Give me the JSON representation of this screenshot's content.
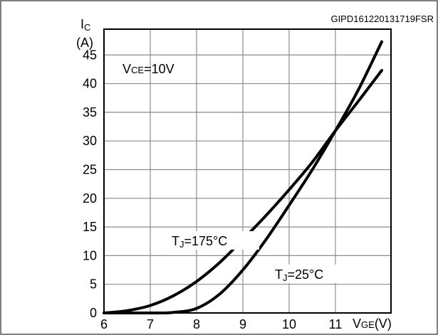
{
  "figure_code": "GIPD161220131719FSR",
  "chart_data": {
    "type": "line",
    "x_unit_label": "(V)",
    "y_label": {
      "main": "I",
      "sub": "C"
    },
    "y_unit_label": "(A)",
    "x_label": {
      "main": "V",
      "sub": "GE"
    },
    "x_ticks": [
      "6",
      "7",
      "8",
      "9",
      "10",
      "11"
    ],
    "y_ticks": [
      "0",
      "5",
      "10",
      "15",
      "20",
      "25",
      "30",
      "35",
      "40",
      "45"
    ],
    "xlim": [
      6,
      12.2
    ],
    "ylim": [
      0,
      49.5
    ],
    "grid": true,
    "annotation": {
      "main": "V",
      "sub": "CE",
      "rest": "=10V"
    },
    "series": [
      {
        "label": {
          "main": "T",
          "sub": "J",
          "rest": "=175°C"
        },
        "points": [
          [
            6.0,
            0.0
          ],
          [
            6.5,
            0.4
          ],
          [
            7.0,
            1.3
          ],
          [
            7.5,
            3.0
          ],
          [
            8.0,
            5.5
          ],
          [
            8.5,
            8.8
          ],
          [
            9.0,
            12.8
          ],
          [
            9.5,
            17.0
          ],
          [
            10.0,
            21.5
          ],
          [
            10.5,
            26.3
          ],
          [
            11.0,
            31.8
          ],
          [
            11.5,
            37.0
          ],
          [
            12.0,
            42.3
          ]
        ]
      },
      {
        "label": {
          "main": "T",
          "sub": "J",
          "rest": "=25°C"
        },
        "points": [
          [
            6.0,
            0.0
          ],
          [
            7.0,
            0.0
          ],
          [
            7.5,
            0.1
          ],
          [
            8.0,
            0.8
          ],
          [
            8.5,
            3.3
          ],
          [
            9.0,
            7.5
          ],
          [
            9.5,
            12.8
          ],
          [
            10.0,
            18.8
          ],
          [
            10.5,
            25.0
          ],
          [
            11.0,
            31.8
          ],
          [
            11.5,
            39.0
          ],
          [
            12.0,
            47.3
          ]
        ]
      }
    ]
  }
}
